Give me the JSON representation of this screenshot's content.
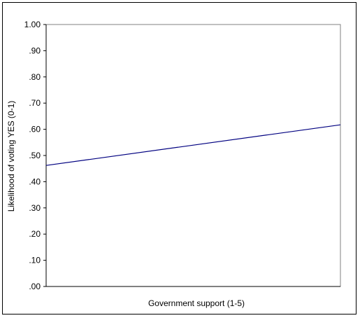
{
  "chart_data": {
    "type": "line",
    "title": "",
    "xlabel": "Government support (1-5)",
    "ylabel": "Likelihood of voting YES (0-1)",
    "ylim": [
      0,
      1
    ],
    "yticks": [
      {
        "value": 0.0,
        "label": ".00"
      },
      {
        "value": 0.1,
        "label": ".10"
      },
      {
        "value": 0.2,
        "label": ".20"
      },
      {
        "value": 0.3,
        "label": ".30"
      },
      {
        "value": 0.4,
        "label": ".40"
      },
      {
        "value": 0.5,
        "label": ".50"
      },
      {
        "value": 0.6,
        "label": ".60"
      },
      {
        "value": 0.7,
        "label": ".70"
      },
      {
        "value": 0.8,
        "label": ".80"
      },
      {
        "value": 0.9,
        "label": ".90"
      },
      {
        "value": 1.0,
        "label": "1.00"
      }
    ],
    "xlim": [
      1,
      5
    ],
    "grid": false,
    "legend": "none",
    "series": [
      {
        "color": "#000080",
        "x": [
          1,
          5
        ],
        "y": [
          0.462,
          0.617
        ]
      }
    ]
  }
}
